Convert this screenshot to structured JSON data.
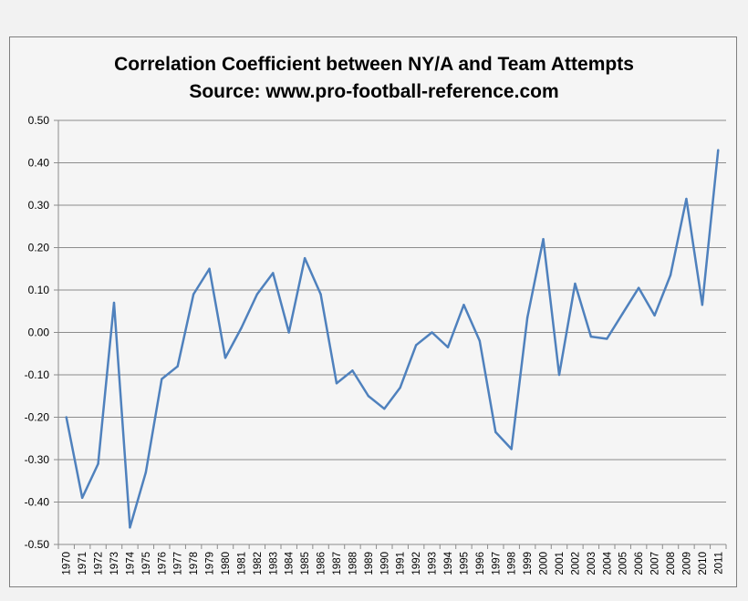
{
  "chart_data": {
    "type": "line",
    "title": "Correlation Coefficient between NY/A and Team Attempts",
    "subtitle": "Source: www.pro-football-reference.com",
    "xlabel": "",
    "ylabel": "",
    "ylim": [
      -0.5,
      0.5
    ],
    "y_ticks": [
      "0.50",
      "0.40",
      "0.30",
      "0.20",
      "0.10",
      "0.00",
      "-0.10",
      "-0.20",
      "-0.30",
      "-0.40",
      "-0.50"
    ],
    "y_tick_values": [
      0.5,
      0.4,
      0.3,
      0.2,
      0.1,
      0.0,
      -0.1,
      -0.2,
      -0.3,
      -0.4,
      -0.5
    ],
    "grid": true,
    "legend": "none",
    "line_color": "#4f81bd",
    "categories": [
      "1970",
      "1971",
      "1972",
      "1973",
      "1974",
      "1975",
      "1976",
      "1977",
      "1978",
      "1979",
      "1980",
      "1981",
      "1982",
      "1983",
      "1984",
      "1985",
      "1986",
      "1987",
      "1988",
      "1989",
      "1990",
      "1991",
      "1992",
      "1993",
      "1994",
      "1995",
      "1996",
      "1997",
      "1998",
      "1999",
      "2000",
      "2001",
      "2002",
      "2003",
      "2004",
      "2005",
      "2006",
      "2007",
      "2008",
      "2009",
      "2010",
      "2011"
    ],
    "values": [
      -0.2,
      -0.39,
      -0.31,
      0.07,
      -0.46,
      -0.33,
      -0.11,
      -0.08,
      0.09,
      0.15,
      -0.06,
      0.01,
      0.09,
      0.14,
      0.0,
      0.175,
      0.09,
      -0.12,
      -0.09,
      -0.15,
      -0.18,
      -0.13,
      -0.03,
      0.0,
      -0.035,
      0.065,
      -0.02,
      -0.235,
      -0.275,
      0.035,
      0.22,
      -0.1,
      0.115,
      -0.01,
      -0.015,
      0.045,
      0.105,
      0.04,
      0.135,
      0.315,
      0.065,
      0.43
    ]
  }
}
